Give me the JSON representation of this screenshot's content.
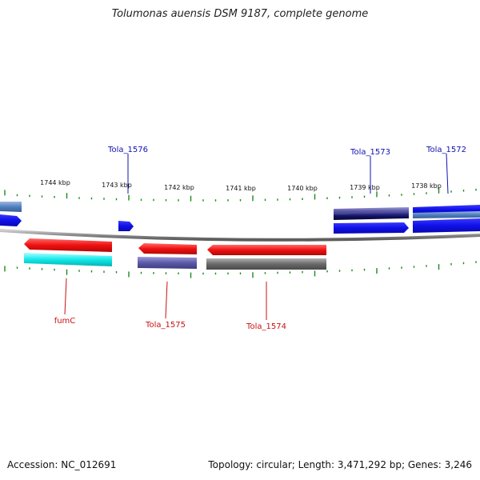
{
  "title": "Tolumonas auensis DSM 9187, complete genome",
  "footer": {
    "accession": "Accession: NC_012691",
    "topology": "Topology: circular; Length: 3,471,292 bp; Genes: 3,246"
  },
  "colors": {
    "tick": "#1b8a1b",
    "backbone": "#8a8a8a",
    "label_forward": "#1010b0",
    "label_reverse": "#cc1010",
    "blue": "#1010e8",
    "steelblue": "#4f7fc0",
    "slate": "#5c5aa8",
    "navy": "#10105e",
    "red": "#f01010",
    "cyan": "#10e8e8",
    "gray": "#6a6a6a"
  },
  "ticks": {
    "labels": [
      "1744 kbp",
      "1743 kbp",
      "1742 kbp",
      "1741 kbp",
      "1740 kbp",
      "1739 kbp",
      "1738 kbp"
    ]
  },
  "genes": {
    "labels": {
      "fumC": "fumC",
      "Tola_1576": "Tola_1576",
      "Tola_1575": "Tola_1575",
      "Tola_1574": "Tola_1574",
      "Tola_1573": "Tola_1573",
      "Tola_1572": "Tola_1572"
    }
  }
}
